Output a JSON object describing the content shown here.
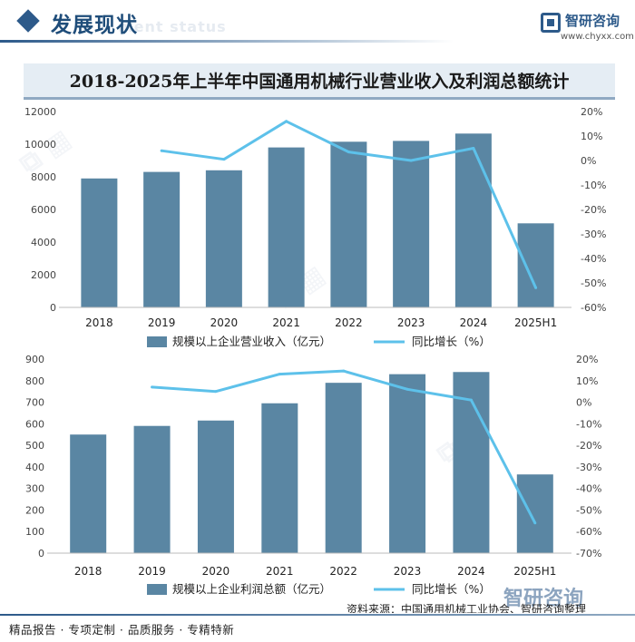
{
  "header": {
    "section_title": "发展现状",
    "section_subtitle": "ment status",
    "logo_name": "智研咨询",
    "logo_url": "www.chyxx.com"
  },
  "chart_title": "2018-2025年上半年中国通用机械行业营业收入及利润总额统计",
  "chart_data": [
    {
      "type": "bar",
      "categories": [
        "2018",
        "2019",
        "2020",
        "2021",
        "2022",
        "2023",
        "2024",
        "2025H1"
      ],
      "series": [
        {
          "name": "规模以上企业营业收入（亿元）",
          "kind": "bar",
          "axis": "left",
          "values": [
            7900,
            8300,
            8400,
            9800,
            10150,
            10200,
            10650,
            5150
          ]
        },
        {
          "name": "同比增长（%）",
          "kind": "line",
          "axis": "right",
          "values": [
            null,
            4,
            0.5,
            16,
            3.5,
            0,
            5,
            -52
          ]
        }
      ],
      "ylim_left": [
        0,
        12000
      ],
      "ylim_right": [
        -60,
        20
      ],
      "yticks_left": [
        "0",
        "2000",
        "4000",
        "6000",
        "8000",
        "10000",
        "12000"
      ],
      "yticks_right": [
        "-60%",
        "-50%",
        "-40%",
        "-30%",
        "-20%",
        "-10%",
        "0%",
        "10%",
        "20%"
      ],
      "bar_color": "#5a86a3",
      "line_color": "#5dc1ea"
    },
    {
      "type": "bar",
      "categories": [
        "2018",
        "2019",
        "2020",
        "2021",
        "2022",
        "2023",
        "2024",
        "2025H1"
      ],
      "series": [
        {
          "name": "规模以上企业利润总额（亿元）",
          "kind": "bar",
          "axis": "left",
          "values": [
            550,
            590,
            615,
            695,
            790,
            830,
            840,
            365
          ]
        },
        {
          "name": "同比增长（%）",
          "kind": "line",
          "axis": "right",
          "values": [
            null,
            7,
            5,
            13,
            14.5,
            6,
            1,
            -56
          ]
        }
      ],
      "ylim_left": [
        0,
        900
      ],
      "ylim_right": [
        -70,
        20
      ],
      "yticks_left": [
        "0",
        "100",
        "200",
        "300",
        "400",
        "500",
        "600",
        "700",
        "800",
        "900"
      ],
      "yticks_right": [
        "-70%",
        "-60%",
        "-50%",
        "-40%",
        "-30%",
        "-20%",
        "-10%",
        "0%",
        "10%",
        "20%"
      ],
      "bar_color": "#5a86a3",
      "line_color": "#5dc1ea"
    }
  ],
  "source_text": "资料来源：中国通用机械工业协会、智研咨询整理",
  "brand_watermark": "智研咨询",
  "footer_text": "精品报告 · 专项定制 · 品质服务 · 专精特新"
}
